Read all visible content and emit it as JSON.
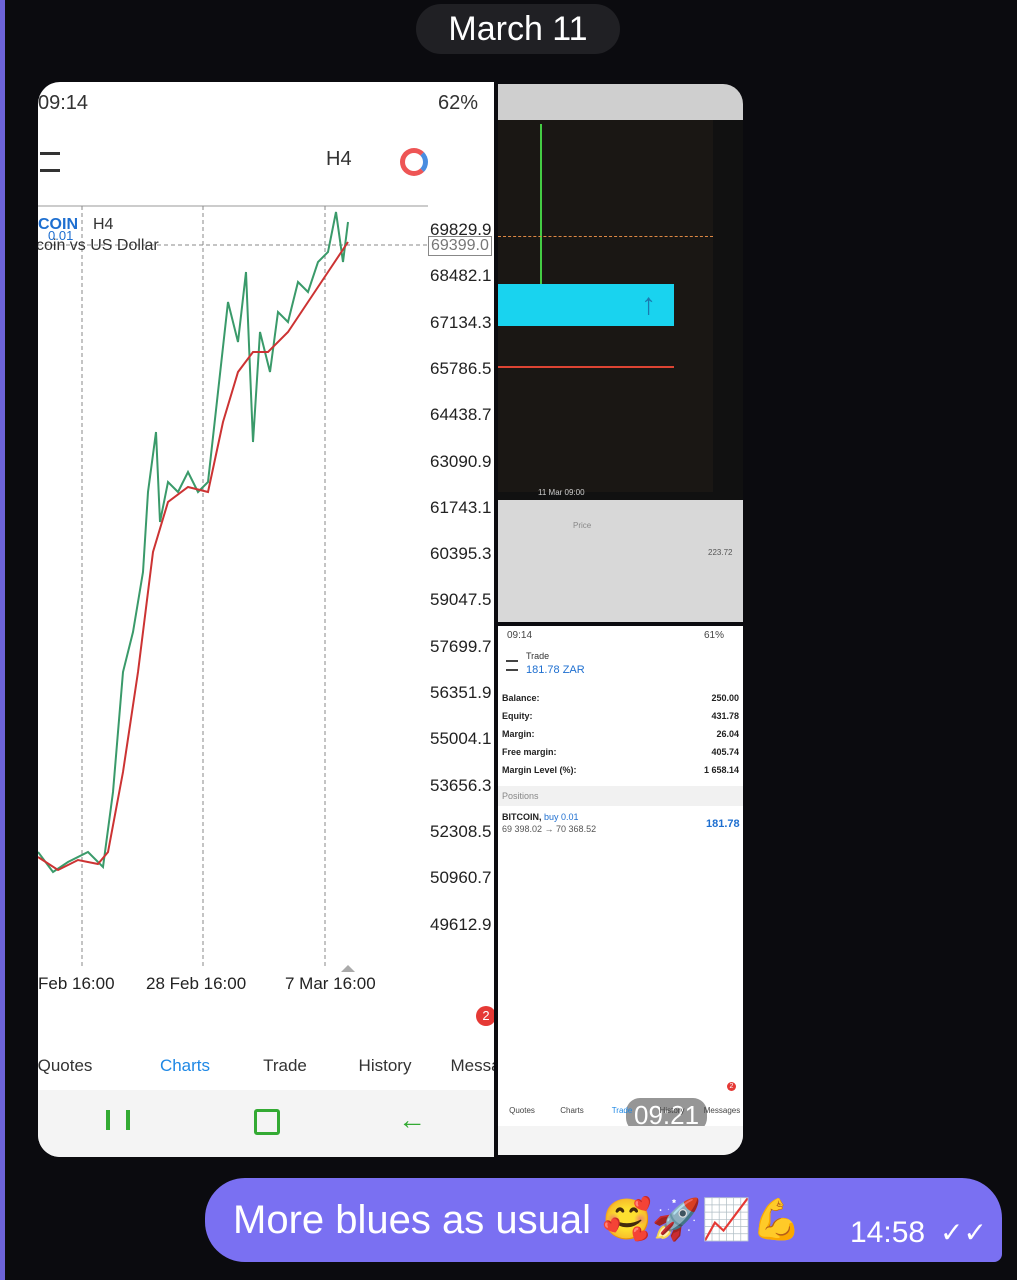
{
  "date_pill": "March 11",
  "left_screen": {
    "status": {
      "time": "09:14",
      "battery": "62%"
    },
    "toolbar": {
      "timeframe": "H4"
    },
    "chart_header": {
      "symbol": "COIN",
      "timeframe": "H4",
      "lot": "0.01",
      "description": "coin vs US Dollar"
    },
    "current_price": "69399.0",
    "price_labels": [
      "69829.9",
      "68482.1",
      "67134.3",
      "65786.5",
      "64438.7",
      "63090.9",
      "61743.1",
      "60395.3",
      "59047.5",
      "57699.7",
      "56351.9",
      "55004.1",
      "53656.3",
      "52308.5",
      "50960.7",
      "49612.9"
    ],
    "time_labels": [
      "Feb 16:00",
      "28 Feb 16:00",
      "7 Mar 16:00"
    ],
    "nav": [
      "Quotes",
      "Charts",
      "Trade",
      "History",
      "Message"
    ],
    "badge": "2"
  },
  "photo_screen": {
    "time_label": "11 Mar 09:00",
    "price_header": "Price",
    "value": "223.72"
  },
  "trade_screen": {
    "status": {
      "time": "09:14",
      "battery": "61%"
    },
    "title": "Trade",
    "subtitle": "181.78 ZAR",
    "rows": [
      [
        "Balance:",
        "250.00"
      ],
      [
        "Equity:",
        "431.78"
      ],
      [
        "Margin:",
        "26.04"
      ],
      [
        "Free margin:",
        "405.74"
      ],
      [
        "Margin Level (%):",
        "1 658.14"
      ]
    ],
    "positions_header": "Positions",
    "position": {
      "symbol": "BITCOIN,",
      "side": "buy 0.01",
      "prices": "69 398.02 → 70 368.52",
      "profit": "181.78"
    },
    "nav": [
      "Quotes",
      "Charts",
      "Trade",
      "History",
      "Messages"
    ],
    "badge": "2",
    "duration": "09:21"
  },
  "message": {
    "text": "More blues as usual 🥰🚀📈💪",
    "time": "14:58"
  }
}
